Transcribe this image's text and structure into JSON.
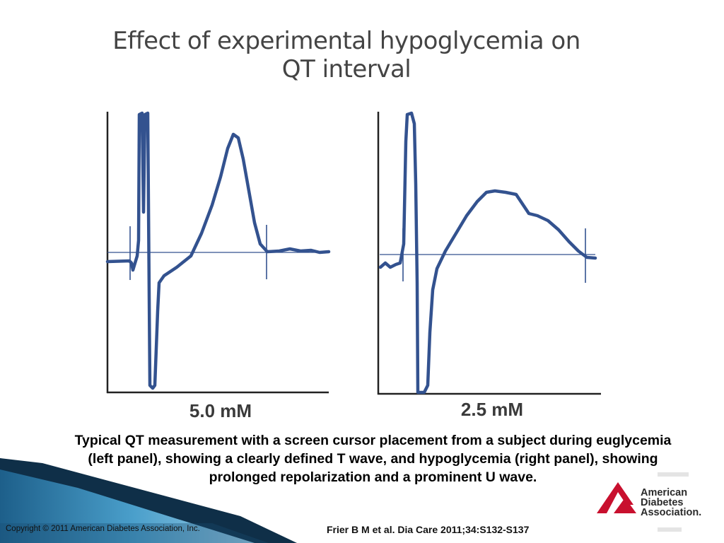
{
  "title": {
    "line1": "Effect of experimental hypoglycemia on",
    "line2": "QT interval"
  },
  "panels": [
    {
      "label": "5.0 mM"
    },
    {
      "label": "2.5 mM"
    }
  ],
  "caption": {
    "line1": "Typical QT measurement with a screen cursor placement from a subject during euglycemia",
    "line2": "(left panel), showing a clearly defined T wave, and hypoglycemia (right panel), showing",
    "line3": "prolonged repolarization and a prominent U wave."
  },
  "footer": {
    "copyright": "Copyright © 2011 American Diabetes Association, Inc.",
    "citation": "Frier B M et al. Dia Care 2011;34:S132-S137"
  },
  "logo": {
    "line1": "American",
    "line2": "Diabetes",
    "line3": "Association."
  },
  "colors": {
    "trace": "#33528f",
    "logo_red": "#c8102e",
    "band_dark": "#0f3450",
    "band_mid": "#2e7da8",
    "band_light": "#8cc0de"
  }
}
